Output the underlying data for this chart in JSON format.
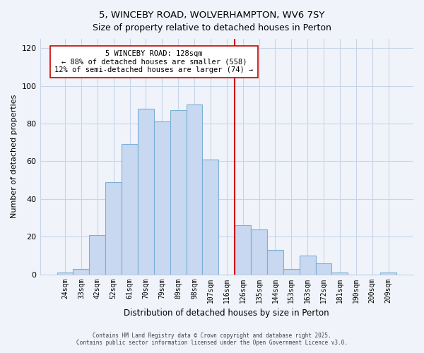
{
  "title": "5, WINCEBY ROAD, WOLVERHAMPTON, WV6 7SY",
  "subtitle": "Size of property relative to detached houses in Perton",
  "xlabel": "Distribution of detached houses by size in Perton",
  "ylabel": "Number of detached properties",
  "bin_labels": [
    "24sqm",
    "33sqm",
    "42sqm",
    "52sqm",
    "61sqm",
    "70sqm",
    "79sqm",
    "89sqm",
    "98sqm",
    "107sqm",
    "116sqm",
    "126sqm",
    "135sqm",
    "144sqm",
    "153sqm",
    "163sqm",
    "172sqm",
    "181sqm",
    "190sqm",
    "200sqm",
    "209sqm"
  ],
  "bar_values": [
    1,
    3,
    21,
    49,
    69,
    88,
    81,
    87,
    90,
    61,
    0,
    26,
    24,
    13,
    3,
    10,
    6,
    1,
    0,
    0,
    1
  ],
  "bar_color": "#c8d8f0",
  "bar_edge_color": "#7ab0d4",
  "vline_x_index": 11,
  "vline_color": "#cc0000",
  "annotation_title": "5 WINCEBY ROAD: 128sqm",
  "annotation_line1": "← 88% of detached houses are smaller (558)",
  "annotation_line2": "12% of semi-detached houses are larger (74) →",
  "annotation_box_facecolor": "#ffffff",
  "annotation_box_edgecolor": "#cc0000",
  "ylim": [
    0,
    125
  ],
  "yticks": [
    0,
    20,
    40,
    60,
    80,
    100,
    120
  ],
  "footer_line1": "Contains HM Land Registry data © Crown copyright and database right 2025.",
  "footer_line2": "Contains public sector information licensed under the Open Government Licence v3.0.",
  "bg_color": "#f0f4fa",
  "grid_color": "#c8d4e8",
  "title_fontsize": 9.5,
  "subtitle_fontsize": 9,
  "xlabel_fontsize": 8.5,
  "ylabel_fontsize": 8,
  "tick_fontsize": 7,
  "annotation_fontsize": 7.5
}
